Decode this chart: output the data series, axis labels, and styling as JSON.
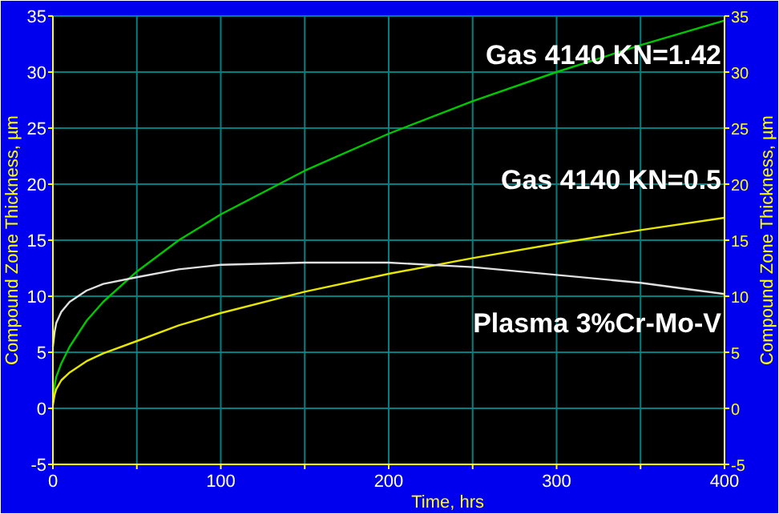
{
  "chart_data": {
    "type": "line",
    "xlabel": "Time, hrs",
    "ylabel": "Compound Zone Thickness, µm",
    "y2label": "Compound Zone Thickness, µm",
    "xlim": [
      0,
      400
    ],
    "xticks": [
      0,
      {
        "value": 50,
        "label": null
      },
      100,
      {
        "value": 150,
        "label": null
      },
      200,
      {
        "value": 250,
        "label": null
      },
      300,
      {
        "value": 350,
        "label": null
      },
      400
    ],
    "ylim": [
      -5,
      35
    ],
    "yticks": [
      -5,
      0,
      5,
      10,
      15,
      20,
      25,
      30,
      35
    ],
    "y2lim": [
      -5,
      35
    ],
    "y2ticks": [
      -5,
      0,
      5,
      10,
      15,
      20,
      25,
      30,
      35
    ],
    "grid": true,
    "marker": "none",
    "line_style": "solid",
    "x": [
      0,
      1,
      2,
      5,
      10,
      20,
      30,
      50,
      75,
      100,
      150,
      200,
      250,
      300,
      350,
      400
    ],
    "series": [
      {
        "name": "Gas 4140 KN=1.42",
        "color": "#00c800",
        "values": [
          0.5,
          2,
          2.8,
          4,
          5.5,
          7.8,
          9.5,
          12.2,
          15,
          17.3,
          21.2,
          24.5,
          27.4,
          30,
          32.4,
          34.6
        ]
      },
      {
        "name": "Gas 4140 KN=0.5",
        "color": "#e6e600",
        "values": [
          0.3,
          1.2,
          1.7,
          2.5,
          3.2,
          4.2,
          4.9,
          6,
          7.4,
          8.5,
          10.4,
          12,
          13.4,
          14.7,
          15.9,
          17
        ]
      },
      {
        "name": "Plasma 3%Cr-Mo-V",
        "color": "#e0e0e0",
        "values": [
          5.5,
          6.8,
          7.6,
          8.6,
          9.5,
          10.5,
          11.1,
          11.7,
          12.4,
          12.8,
          13,
          13,
          12.6,
          11.9,
          11.2,
          10.2
        ]
      }
    ]
  }
}
